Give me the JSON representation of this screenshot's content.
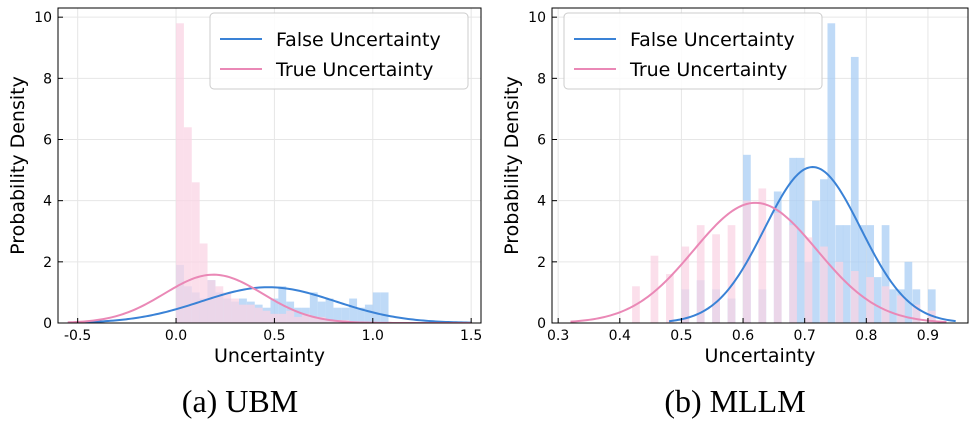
{
  "chart_data": [
    {
      "type": "histogram",
      "caption": "(a) UBM",
      "xlabel": "Uncertainty",
      "ylabel": "Probability Density",
      "xlim": [
        -0.6,
        1.55
      ],
      "ylim": [
        0,
        10.3
      ],
      "xticks": [
        -0.5,
        0.0,
        0.5,
        1.0,
        1.5
      ],
      "xtick_labels": [
        "-0.5",
        "0.0",
        "0.5",
        "1.0",
        "1.5"
      ],
      "yticks": [
        0,
        2,
        4,
        6,
        8,
        10
      ],
      "ytick_labels": [
        "0",
        "2",
        "4",
        "6",
        "8",
        "10"
      ],
      "grid": true,
      "legend": "upper-right",
      "bin_width": 0.04,
      "series": [
        {
          "name": "False Uncertainty",
          "color": "#3a82d6",
          "hist_color": "#aacdf4",
          "kde": {
            "mean": 0.47,
            "std": 0.34,
            "peak": 1.17,
            "range": [
              -0.55,
              1.5
            ]
          },
          "bins": [
            [
              0.0,
              1.9
            ],
            [
              0.04,
              1.2
            ],
            [
              0.08,
              1.0
            ],
            [
              0.12,
              0.8
            ],
            [
              0.16,
              1.4
            ],
            [
              0.2,
              1.0
            ],
            [
              0.24,
              0.8
            ],
            [
              0.28,
              0.7
            ],
            [
              0.32,
              0.8
            ],
            [
              0.36,
              0.7
            ],
            [
              0.4,
              0.6
            ],
            [
              0.44,
              0.5
            ],
            [
              0.48,
              0.8
            ],
            [
              0.52,
              1.2
            ],
            [
              0.56,
              0.7
            ],
            [
              0.6,
              0.5
            ],
            [
              0.64,
              0.5
            ],
            [
              0.68,
              1.0
            ],
            [
              0.72,
              0.7
            ],
            [
              0.76,
              0.8
            ],
            [
              0.8,
              0.5
            ],
            [
              0.84,
              0.5
            ],
            [
              0.88,
              0.8
            ],
            [
              0.92,
              0.5
            ],
            [
              0.96,
              0.6
            ],
            [
              1.0,
              1.0
            ],
            [
              1.04,
              1.0
            ]
          ]
        },
        {
          "name": "True Uncertainty",
          "color": "#ea88b6",
          "hist_color": "#fad4e4",
          "kde": {
            "mean": 0.19,
            "std": 0.25,
            "peak": 1.58,
            "range": [
              -0.55,
              1.5
            ]
          },
          "bins": [
            [
              0.0,
              9.8
            ],
            [
              0.04,
              6.4
            ],
            [
              0.08,
              4.6
            ],
            [
              0.12,
              2.6
            ],
            [
              0.16,
              1.4
            ],
            [
              0.2,
              1.2
            ],
            [
              0.24,
              1.0
            ],
            [
              0.28,
              0.8
            ],
            [
              0.32,
              0.6
            ],
            [
              0.36,
              0.6
            ],
            [
              0.4,
              0.5
            ],
            [
              0.44,
              0.4
            ],
            [
              0.48,
              0.3
            ],
            [
              0.52,
              0.3
            ],
            [
              0.56,
              0.4
            ],
            [
              0.6,
              0.2
            ],
            [
              0.64,
              0.3
            ],
            [
              0.68,
              0.2
            ],
            [
              0.72,
              0.2
            ],
            [
              0.76,
              0.1
            ],
            [
              0.8,
              0.1
            ],
            [
              0.84,
              0.1
            ]
          ]
        }
      ]
    },
    {
      "type": "histogram",
      "caption": "(b) MLLM",
      "xlabel": "Uncertainty",
      "ylabel": "Probability Density",
      "xlim": [
        0.29,
        0.965
      ],
      "ylim": [
        0,
        10.3
      ],
      "xticks": [
        0.3,
        0.4,
        0.5,
        0.6,
        0.7,
        0.8,
        0.9
      ],
      "xtick_labels": [
        "0.3",
        "0.4",
        "0.5",
        "0.6",
        "0.7",
        "0.8",
        "0.9"
      ],
      "yticks": [
        0,
        2,
        4,
        6,
        8,
        10
      ],
      "ytick_labels": [
        "0",
        "2",
        "4",
        "6",
        "8",
        "10"
      ],
      "grid": true,
      "legend": "upper-left",
      "bin_width": 0.0125,
      "series": [
        {
          "name": "False Uncertainty",
          "color": "#3a82d6",
          "hist_color": "#aacdf4",
          "kde": {
            "mean": 0.713,
            "std": 0.078,
            "peak": 5.1,
            "range": [
              0.48,
              0.945
            ]
          },
          "bins": [
            [
              0.5,
              1.1
            ],
            [
              0.525,
              1.4
            ],
            [
              0.55,
              1.1
            ],
            [
              0.575,
              0.8
            ],
            [
              0.6,
              5.5
            ],
            [
              0.625,
              1.1
            ],
            [
              0.65,
              4.3
            ],
            [
              0.675,
              5.4
            ],
            [
              0.687,
              5.4
            ],
            [
              0.7,
              2.0
            ],
            [
              0.712,
              4.0
            ],
            [
              0.725,
              4.7
            ],
            [
              0.737,
              9.8
            ],
            [
              0.75,
              3.2
            ],
            [
              0.762,
              3.2
            ],
            [
              0.775,
              8.7
            ],
            [
              0.787,
              3.2
            ],
            [
              0.8,
              3.2
            ],
            [
              0.812,
              1.5
            ],
            [
              0.825,
              3.2
            ],
            [
              0.837,
              1.1
            ],
            [
              0.85,
              1.1
            ],
            [
              0.862,
              2.0
            ],
            [
              0.875,
              1.1
            ],
            [
              0.9,
              1.1
            ]
          ]
        },
        {
          "name": "True Uncertainty",
          "color": "#ea88b6",
          "hist_color": "#fad4e4",
          "kde": {
            "mean": 0.62,
            "std": 0.1,
            "peak": 3.93,
            "range": [
              0.32,
              0.93
            ]
          },
          "bins": [
            [
              0.42,
              1.2
            ],
            [
              0.45,
              2.2
            ],
            [
              0.475,
              1.6
            ],
            [
              0.5,
              2.5
            ],
            [
              0.525,
              3.2
            ],
            [
              0.55,
              2.9
            ],
            [
              0.575,
              3.2
            ],
            [
              0.6,
              4.0
            ],
            [
              0.625,
              4.4
            ],
            [
              0.65,
              3.6
            ],
            [
              0.675,
              3.2
            ],
            [
              0.7,
              2.8
            ],
            [
              0.725,
              2.5
            ],
            [
              0.75,
              2.0
            ],
            [
              0.775,
              1.7
            ],
            [
              0.8,
              1.5
            ],
            [
              0.825,
              1.2
            ],
            [
              0.85,
              0.9
            ],
            [
              0.875,
              0.6
            ],
            [
              0.9,
              0.4
            ]
          ]
        }
      ]
    }
  ]
}
